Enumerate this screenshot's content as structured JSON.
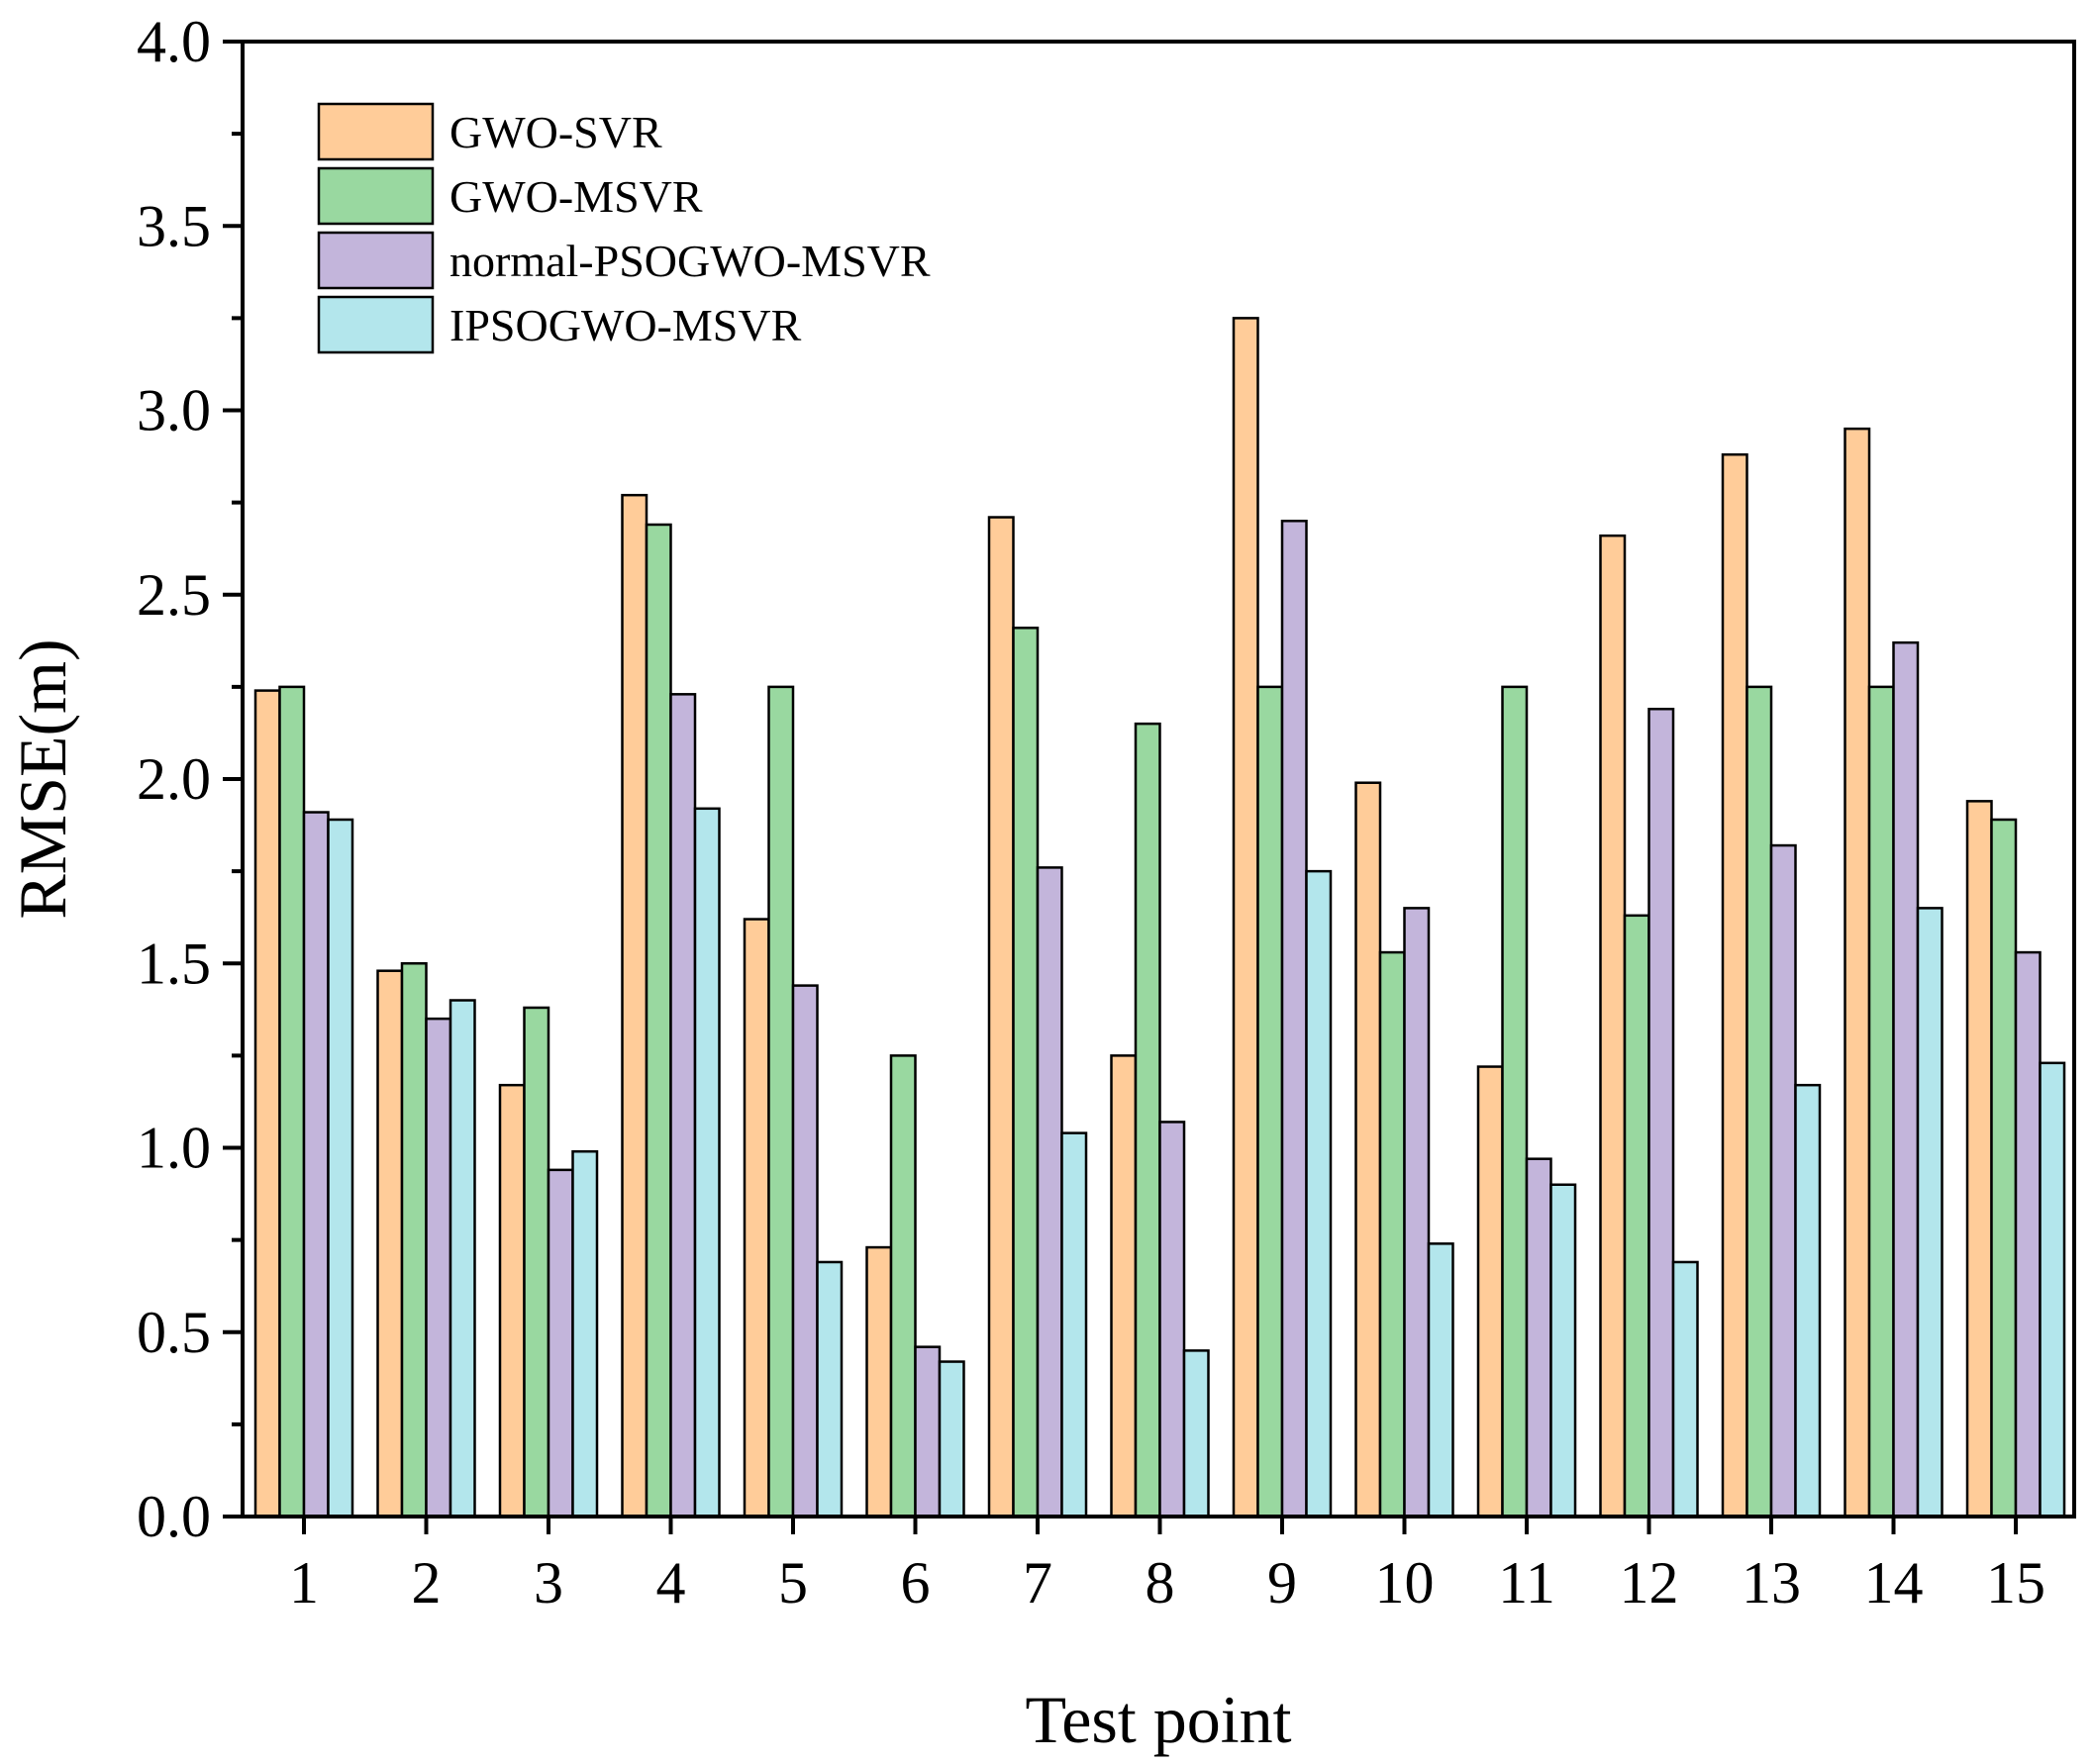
{
  "chart_data": {
    "type": "bar",
    "title": "",
    "xlabel": "Test point",
    "ylabel": "RMSE(m)",
    "ylim": [
      0,
      4.0
    ],
    "yticks": [
      "0.0",
      "0.5",
      "1.0",
      "1.5",
      "2.0",
      "2.5",
      "3.0",
      "3.5",
      "4.0"
    ],
    "categories": [
      "1",
      "2",
      "3",
      "4",
      "5",
      "6",
      "7",
      "8",
      "9",
      "10",
      "11",
      "12",
      "13",
      "14",
      "15"
    ],
    "legend_position": "top-left",
    "series": [
      {
        "name": "GWO-SVR",
        "color": "#FFCC99",
        "values": [
          2.24,
          1.48,
          1.17,
          2.77,
          1.62,
          0.73,
          2.71,
          1.25,
          3.25,
          1.99,
          1.22,
          2.66,
          2.88,
          2.95,
          1.94
        ]
      },
      {
        "name": "GWO-MSVR",
        "color": "#99D8A0",
        "values": [
          2.25,
          1.5,
          1.38,
          2.69,
          2.25,
          1.25,
          2.41,
          2.15,
          2.25,
          1.53,
          2.25,
          1.63,
          2.25,
          2.25,
          1.89
        ]
      },
      {
        "name": "normal-PSOGWO-MSVR",
        "color": "#C3B5DB",
        "values": [
          1.91,
          1.35,
          0.94,
          2.23,
          1.44,
          0.46,
          1.76,
          1.07,
          2.7,
          1.65,
          0.97,
          2.19,
          1.82,
          2.37,
          1.53
        ]
      },
      {
        "name": "IPSOGWO-MSVR",
        "color": "#B3E6EC",
        "values": [
          1.89,
          1.4,
          0.99,
          1.92,
          0.69,
          0.42,
          1.04,
          0.45,
          1.75,
          0.74,
          0.9,
          0.69,
          1.17,
          1.65,
          1.23
        ]
      }
    ]
  }
}
